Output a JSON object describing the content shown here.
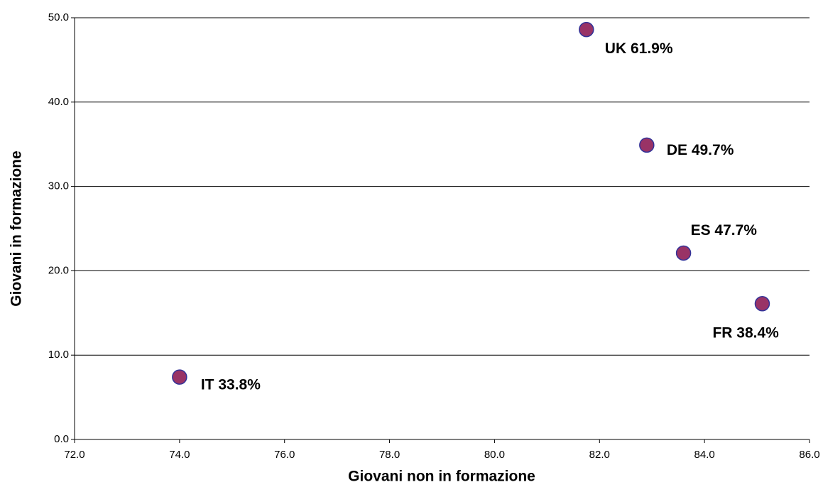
{
  "chart_data": {
    "type": "scatter",
    "x_label": "Giovani non in formazione",
    "y_label": "Giovani in formazione",
    "x": [
      81.75,
      82.9,
      83.6,
      85.1,
      74.0
    ],
    "values": [
      48.6,
      34.9,
      22.1,
      16.1,
      7.4
    ],
    "labels": [
      "UK 61.9%",
      "DE 49.7%",
      "ES 47.7%",
      "FR 38.4%",
      "IT 33.8%"
    ],
    "color": "#993366",
    "edge_color": "#333399",
    "xlim": [
      72,
      86
    ],
    "xticks": [
      {
        "value": 72,
        "label": "72.0"
      },
      {
        "value": 74,
        "label": "74.0"
      },
      {
        "value": 76,
        "label": "76.0"
      },
      {
        "value": 78,
        "label": "78.0"
      },
      {
        "value": 80,
        "label": "80.0"
      },
      {
        "value": 82,
        "label": "82.0"
      },
      {
        "value": 84,
        "label": "84.0"
      },
      {
        "value": 86,
        "label": "86.0"
      }
    ],
    "ylim": [
      0,
      50
    ],
    "yticks": [
      {
        "value": 0,
        "label": "0.0"
      },
      {
        "value": 10,
        "label": "10.0"
      },
      {
        "value": 20,
        "label": "20.0"
      },
      {
        "value": 30,
        "label": "30.0"
      },
      {
        "value": 40,
        "label": "40.0"
      },
      {
        "value": 50,
        "label": "50.0"
      }
    ],
    "grid": true
  }
}
